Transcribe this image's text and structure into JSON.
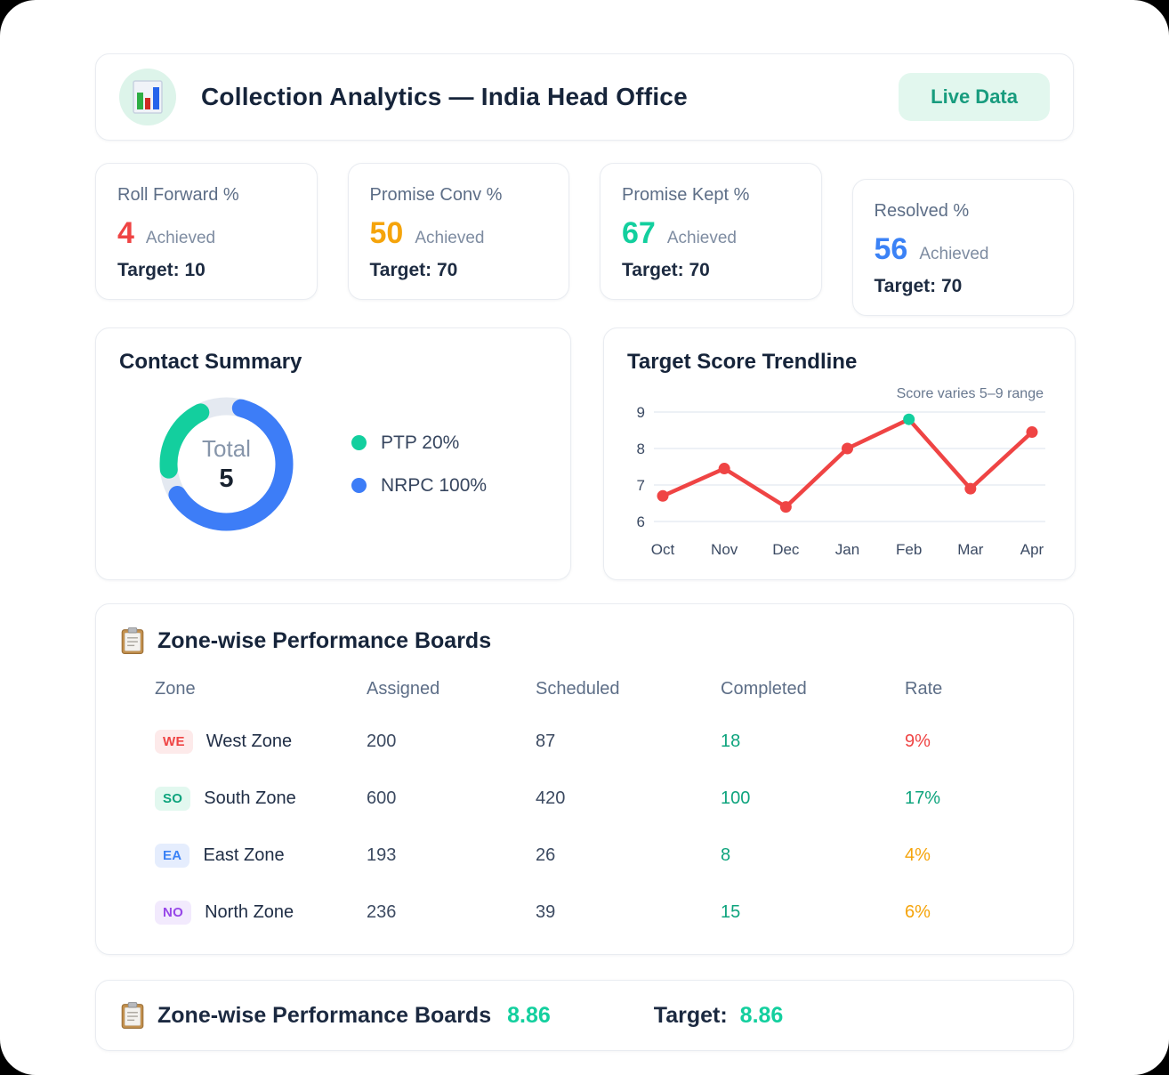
{
  "header": {
    "title": "Collection Analytics — India Head Office",
    "live_badge": "Live Data"
  },
  "colors": {
    "red": "#ef4444",
    "amber": "#f5a40b",
    "teal_bright": "#13cf9e",
    "blue": "#3b82f6",
    "donut_blue": "#3d7df7",
    "table_green": "#0ea47d",
    "line_red": "#ef4444"
  },
  "kpis": [
    {
      "label": "Roll Forward %",
      "value": "4",
      "value_color": "#ef4444",
      "suffix": "Achieved",
      "target": "Target: 10"
    },
    {
      "label": "Promise Conv %",
      "value": "50",
      "value_color": "#f5a40b",
      "suffix": "Achieved",
      "target": "Target: 70"
    },
    {
      "label": "Promise Kept %",
      "value": "67",
      "value_color": "#13cf9e",
      "suffix": "Achieved",
      "target": "Target: 70"
    },
    {
      "label": "Resolved %",
      "value": "56",
      "value_color": "#3b82f6",
      "suffix": "Achieved",
      "target": "Target: 70"
    }
  ],
  "contact_summary": {
    "title": "Contact Summary",
    "center_label": "Total",
    "center_value": "5",
    "legend": [
      {
        "label": "PTP 20%",
        "color": "#13cf9e"
      },
      {
        "label": "NRPC 100%",
        "color": "#3d7df7"
      }
    ]
  },
  "trendline": {
    "title": "Target Score Trendline",
    "annotation": "Score varies 5–9 range"
  },
  "chart_data": [
    {
      "type": "pie",
      "title": "Contact Summary",
      "labels": [
        "PTP",
        "NRPC"
      ],
      "values": [
        20,
        100
      ],
      "unit": "%",
      "center_label": "Total",
      "center_value": 5,
      "colors": [
        "#13cf9e",
        "#3d7df7"
      ],
      "legend_position": "right"
    },
    {
      "type": "line",
      "title": "Target Score Trendline",
      "categories": [
        "Oct",
        "Nov",
        "Dec",
        "Jan",
        "Feb",
        "Mar",
        "Apr"
      ],
      "values": [
        6.7,
        7.45,
        6.4,
        8.0,
        8.8,
        6.9,
        8.45
      ],
      "yticks": [
        9,
        8,
        7,
        6
      ],
      "ylim": [
        5.9,
        9.4
      ],
      "grid": true,
      "annotation": "Score varies 5–9 range",
      "line_color": "#ef4444",
      "point_color": "#ef4444",
      "highlight_index": 4,
      "highlight_color": "#13cf9e"
    }
  ],
  "table": {
    "title": "Zone-wise Performance Boards",
    "columns": [
      "Zone",
      "Assigned",
      "Scheduled",
      "Completed",
      "Rate"
    ],
    "completed_color": "#0ea47d",
    "rows": [
      {
        "badge": "WE",
        "badge_color": "#ef4444",
        "badge_bg": "#fdeaea",
        "zone": "West Zone",
        "assigned": "200",
        "scheduled": "87",
        "completed": "18",
        "rate": "9%",
        "rate_color": "#ef4444"
      },
      {
        "badge": "SO",
        "badge_color": "#0ea47d",
        "badge_bg": "#e2f8ef",
        "zone": "South Zone",
        "assigned": "600",
        "scheduled": "420",
        "completed": "100",
        "rate": "17%",
        "rate_color": "#0ea47d"
      },
      {
        "badge": "EA",
        "badge_color": "#3b82f6",
        "badge_bg": "#e5edfd",
        "zone": "East Zone",
        "assigned": "193",
        "scheduled": "26",
        "completed": "8",
        "rate": "4%",
        "rate_color": "#f5a40b"
      },
      {
        "badge": "NO",
        "badge_color": "#9747e8",
        "badge_bg": "#f2eafd",
        "zone": "North Zone",
        "assigned": "236",
        "scheduled": "39",
        "completed": "15",
        "rate": "6%",
        "rate_color": "#f5a40b"
      }
    ]
  },
  "footer": {
    "title": "Zone-wise Performance Boards",
    "value": "8.86",
    "value_color": "#13cf9e",
    "target_label": "Target:",
    "target_value": "8.86",
    "target_value_color": "#13cf9e"
  }
}
